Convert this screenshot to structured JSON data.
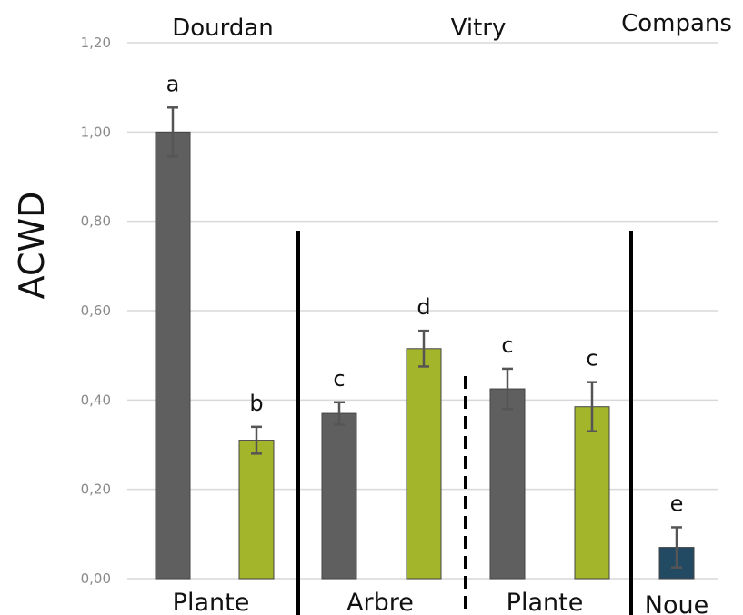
{
  "chart_data": {
    "type": "bar",
    "ylabel": "ACWD",
    "ylim": [
      0,
      1.2
    ],
    "yticks": [
      "0,00",
      "0,20",
      "0,40",
      "0,60",
      "0,80",
      "1,00",
      "1,20"
    ],
    "grid": true,
    "sites": [
      "Dourdan",
      "Vitry",
      "Compans"
    ],
    "groups": [
      "Plante",
      "Arbre",
      "Plante",
      "Noue"
    ],
    "colors": {
      "dark": "#5f5f5f",
      "green": "#a3b52a",
      "navy": "#234a63"
    },
    "bars": [
      {
        "value": 1.0,
        "error": 0.055,
        "letter": "a",
        "color": "dark"
      },
      {
        "value": 0.31,
        "error": 0.03,
        "letter": "b",
        "color": "green"
      },
      {
        "value": 0.37,
        "error": 0.025,
        "letter": "c",
        "color": "dark"
      },
      {
        "value": 0.515,
        "error": 0.04,
        "letter": "d",
        "color": "green"
      },
      {
        "value": 0.425,
        "error": 0.045,
        "letter": "c",
        "color": "dark"
      },
      {
        "value": 0.385,
        "error": 0.055,
        "letter": "c",
        "color": "green"
      },
      {
        "value": 0.07,
        "error": 0.045,
        "letter": "e",
        "color": "navy"
      }
    ]
  }
}
